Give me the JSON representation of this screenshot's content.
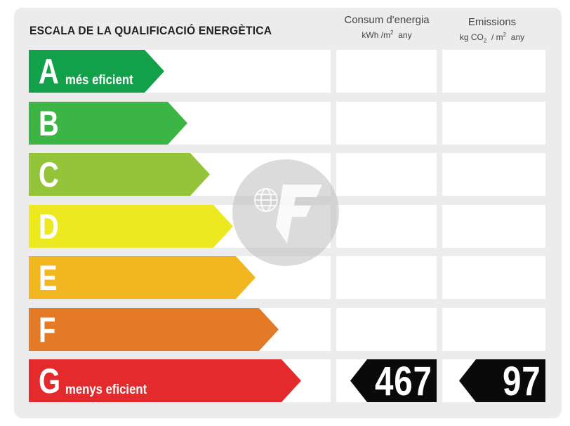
{
  "title": "ESCALA DE LA QUALIFICACIÓ ENERGÈTICA",
  "columns": {
    "consumption": {
      "label": "Consum d'energia",
      "unit_pre": "kWh /m",
      "unit_sup": "2",
      "unit_post": "  any"
    },
    "emissions": {
      "label": "Emissions",
      "unit_pre": "kg CO",
      "unit_sub": "2",
      "unit_mid": "  / m",
      "unit_sup": "2",
      "unit_post": "  any"
    }
  },
  "ratings": [
    {
      "letter": "A",
      "label": "més eficient",
      "color": "#12a04a"
    },
    {
      "letter": "B",
      "label": "",
      "color": "#3db546"
    },
    {
      "letter": "C",
      "label": "",
      "color": "#94c43a"
    },
    {
      "letter": "D",
      "label": "",
      "color": "#ece921"
    },
    {
      "letter": "E",
      "label": "",
      "color": "#f2b620"
    },
    {
      "letter": "F",
      "label": "",
      "color": "#e57a26"
    },
    {
      "letter": "G",
      "label": "menys eficient",
      "color": "#e32a2d"
    }
  ],
  "result": {
    "rating": "G",
    "consumption_value": "467",
    "emissions_value": "97"
  },
  "watermark": {
    "icon": "company-logo-watermark"
  }
}
